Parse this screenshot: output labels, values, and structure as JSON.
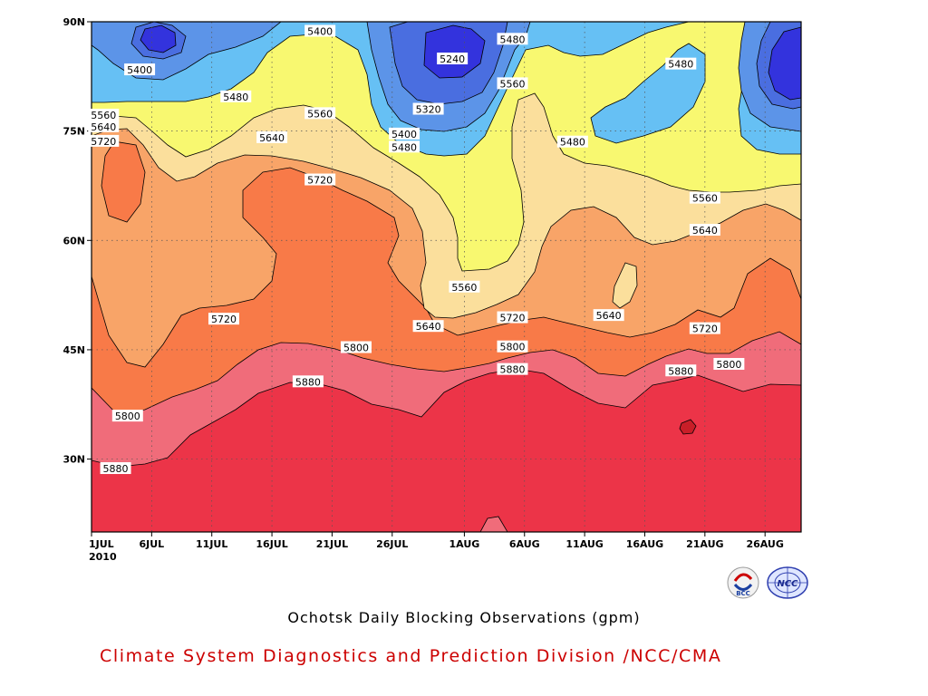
{
  "titles": {
    "main": "Ochotsk Daily Blocking Observations (gpm)",
    "org": "Climate System Diagnostics and Prediction Division /NCC/CMA"
  },
  "logos": {
    "left": "BCC",
    "right": "NCC",
    "left_icon": "bcc-logo-icon",
    "right_icon": "ncc-logo-icon"
  },
  "chart_data": {
    "type": "heatmap",
    "subtype": "filled-contour time-latitude section",
    "title": "Ochotsk Daily Blocking Observations (gpm)",
    "x_axis": {
      "start_date": "2010-07-01",
      "end_date": "2010-08-29",
      "ticks": [
        "1JUL",
        "6JUL",
        "11JUL",
        "16JUL",
        "21JUL",
        "26JUL",
        "1AUG",
        "6AUG",
        "11AUG",
        "16AUG",
        "21AUG",
        "26AUG"
      ],
      "year_label": "2010"
    },
    "y_axis": {
      "range": [
        20,
        90
      ],
      "ticks": [
        30,
        45,
        60,
        75,
        90
      ],
      "tick_labels": [
        "30N",
        "45N",
        "60N",
        "75N",
        "90N"
      ]
    },
    "grid": "dotted",
    "contour_levels": [
      5240,
      5320,
      5400,
      5480,
      5560,
      5640,
      5720,
      5800,
      5880
    ],
    "fill_colors": {
      "below_5240": "#3333dd",
      "5240_5320": "#4a6ee0",
      "5320_5400": "#5c94e8",
      "5400_5480": "#66c0f4",
      "5480_5560": "#f8f870",
      "5560_5640": "#fbdf9c",
      "5640_5720": "#f8a468",
      "5720_5800": "#f87a48",
      "5800_5880": "#f06c7a",
      "5880_5960": "#ec3448",
      "above_5960": "#c81e28"
    },
    "contour_labels": [
      {
        "value": "5400",
        "x": "2010-07-20",
        "y": 88.7
      },
      {
        "value": "5400",
        "x": "2010-07-05",
        "y": 83.4
      },
      {
        "value": "5480",
        "x": "2010-07-13",
        "y": 79.7
      },
      {
        "value": "5560",
        "x": "2010-07-20",
        "y": 77.4
      },
      {
        "value": "5240",
        "x": "2010-07-31",
        "y": 84.9
      },
      {
        "value": "5320",
        "x": "2010-07-29",
        "y": 78.0
      },
      {
        "value": "5400",
        "x": "2010-07-27",
        "y": 74.6
      },
      {
        "value": "5480",
        "x": "2010-07-27",
        "y": 72.8
      },
      {
        "value": "5480",
        "x": "2010-08-05",
        "y": 87.6
      },
      {
        "value": "5560",
        "x": "2010-08-05",
        "y": 81.5
      },
      {
        "value": "5480",
        "x": "2010-08-19",
        "y": 84.2
      },
      {
        "value": "5480",
        "x": "2010-08-10",
        "y": 73.5
      },
      {
        "value": "5560",
        "x": "2010-07-02",
        "y": 77.2
      },
      {
        "value": "5640",
        "x": "2010-07-02",
        "y": 75.6
      },
      {
        "value": "5720",
        "x": "2010-07-02",
        "y": 73.6
      },
      {
        "value": "5640",
        "x": "2010-07-16",
        "y": 74.1
      },
      {
        "value": "5720",
        "x": "2010-07-20",
        "y": 68.3
      },
      {
        "value": "5560",
        "x": "2010-08-21",
        "y": 65.8
      },
      {
        "value": "5640",
        "x": "2010-08-21",
        "y": 61.4
      },
      {
        "value": "5560",
        "x": "2010-08-01",
        "y": 53.6
      },
      {
        "value": "5640",
        "x": "2010-07-29",
        "y": 48.2
      },
      {
        "value": "5720",
        "x": "2010-07-12",
        "y": 49.2
      },
      {
        "value": "5720",
        "x": "2010-08-05",
        "y": 49.4
      },
      {
        "value": "5640",
        "x": "2010-08-13",
        "y": 49.7
      },
      {
        "value": "5720",
        "x": "2010-08-21",
        "y": 47.9
      },
      {
        "value": "5800",
        "x": "2010-07-23",
        "y": 45.3
      },
      {
        "value": "5800",
        "x": "2010-08-05",
        "y": 45.4
      },
      {
        "value": "5800",
        "x": "2010-08-23",
        "y": 43.0
      },
      {
        "value": "5880",
        "x": "2010-08-05",
        "y": 42.3
      },
      {
        "value": "5880",
        "x": "2010-08-19",
        "y": 42.1
      },
      {
        "value": "5880",
        "x": "2010-07-19",
        "y": 40.6
      },
      {
        "value": "5800",
        "x": "2010-07-04",
        "y": 35.9
      },
      {
        "value": "5880",
        "x": "2010-07-03",
        "y": 28.7
      }
    ]
  }
}
